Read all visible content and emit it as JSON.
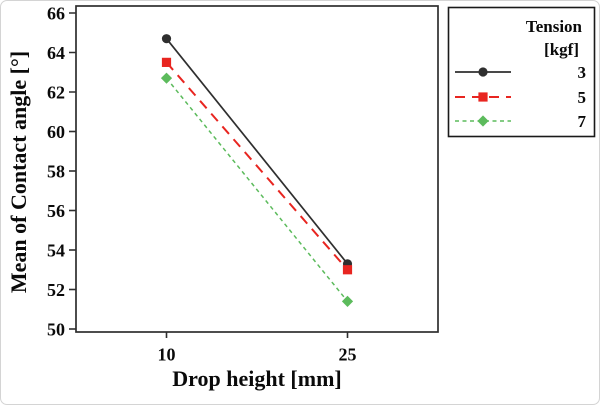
{
  "figure": {
    "background": "#ffffff",
    "border_color": "#d4d4d4"
  },
  "chart_data": {
    "type": "line",
    "title": "",
    "xlabel": "Drop height [mm]",
    "ylabel": "Mean of Contact angle [°]",
    "categories": [
      "10",
      "25"
    ],
    "y_ticks": [
      50,
      52,
      54,
      56,
      58,
      60,
      62,
      64,
      66
    ],
    "ylim": [
      49.8,
      66.4
    ],
    "grid": false,
    "axis_color": "#2e2e2e",
    "text_color": "#0a0a0a",
    "series": [
      {
        "name": "3",
        "values": [
          64.7,
          53.3
        ],
        "color": "#2f2f2f",
        "line_style": "solid",
        "marker": "circle"
      },
      {
        "name": "5",
        "values": [
          63.5,
          53.0
        ],
        "color": "#e82520",
        "line_style": "long-dash",
        "marker": "square"
      },
      {
        "name": "7",
        "values": [
          62.7,
          51.4
        ],
        "color": "#5cbb5c",
        "line_style": "short-dash",
        "marker": "diamond"
      }
    ],
    "legend": {
      "position": "outside-top-right",
      "title_lines": [
        "Tension",
        "[kgf]"
      ],
      "entries": [
        "3",
        "5",
        "7"
      ],
      "border_color": "#1a1a1a"
    }
  }
}
